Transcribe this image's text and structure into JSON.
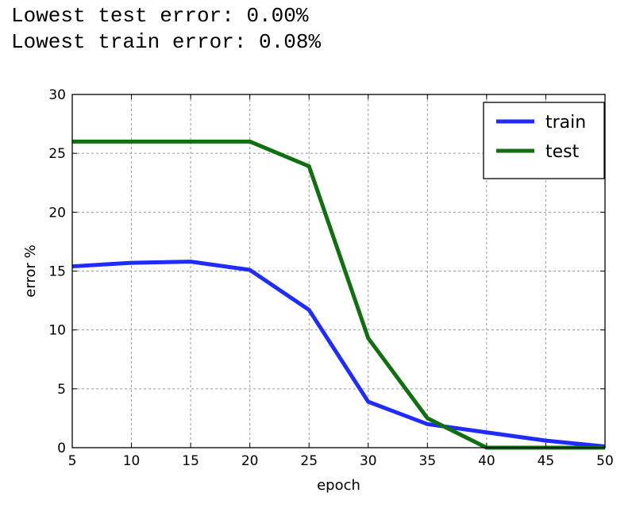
{
  "output_text": {
    "lowest_test": "Lowest test error: 0.00%",
    "lowest_train": "Lowest train error: 0.08%"
  },
  "chart_data": {
    "type": "line",
    "xlabel": "epoch",
    "ylabel": "error %",
    "xlim": [
      5,
      50
    ],
    "ylim": [
      0,
      30
    ],
    "xticks": [
      5,
      10,
      15,
      20,
      25,
      30,
      35,
      40,
      45,
      50
    ],
    "yticks": [
      0,
      5,
      10,
      15,
      20,
      25,
      30
    ],
    "grid": true,
    "legend_position": "top-right",
    "x": [
      5,
      10,
      15,
      20,
      25,
      30,
      35,
      40,
      45,
      50
    ],
    "series": [
      {
        "name": "train",
        "color": "#1f2bff",
        "values": [
          15.4,
          15.7,
          15.8,
          15.1,
          11.7,
          3.9,
          2.0,
          1.3,
          0.6,
          0.1
        ]
      },
      {
        "name": "test",
        "color": "#107010",
        "values": [
          26.0,
          26.0,
          26.0,
          26.0,
          23.9,
          9.3,
          2.5,
          0.0,
          0.0,
          0.0
        ]
      }
    ]
  }
}
